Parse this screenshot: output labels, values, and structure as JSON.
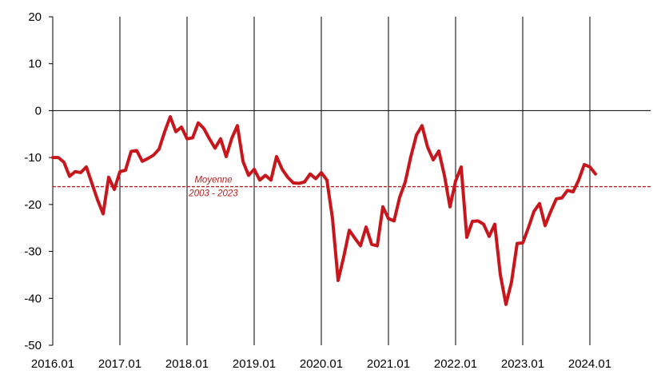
{
  "chart_data": {
    "type": "line",
    "title": "",
    "xlabel": "",
    "ylabel": "",
    "ylim": [
      -50,
      20
    ],
    "yticks": [
      20,
      10,
      0,
      -10,
      -20,
      -30,
      -40,
      -50
    ],
    "xlim": [
      "2016.01",
      "2024.12"
    ],
    "xticks": [
      "2016.01",
      "2017.01",
      "2018.01",
      "2019.01",
      "2020.01",
      "2021.01",
      "2022.01",
      "2023.01",
      "2024.01"
    ],
    "grid": "vertical lines at each year",
    "series_color": "#c8161d",
    "series": [
      {
        "x": [
          "2016.01",
          "2016.02",
          "2016.03",
          "2016.04",
          "2016.05",
          "2016.06",
          "2016.07",
          "2016.08",
          "2016.09",
          "2016.10",
          "2016.11",
          "2016.12",
          "2017.01",
          "2017.02",
          "2017.03",
          "2017.04",
          "2017.05",
          "2017.06",
          "2017.07",
          "2017.08",
          "2017.09",
          "2017.10",
          "2017.11",
          "2017.12",
          "2018.01",
          "2018.02",
          "2018.03",
          "2018.04",
          "2018.05",
          "2018.06",
          "2018.07",
          "2018.08",
          "2018.09",
          "2018.10",
          "2018.11",
          "2018.12",
          "2019.01",
          "2019.02",
          "2019.03",
          "2019.04",
          "2019.05",
          "2019.06",
          "2019.07",
          "2019.08",
          "2019.09",
          "2019.10",
          "2019.11",
          "2019.12",
          "2020.01",
          "2020.02",
          "2020.03",
          "2020.04",
          "2020.05",
          "2020.06",
          "2020.07",
          "2020.08",
          "2020.09",
          "2020.10",
          "2020.11",
          "2020.12",
          "2021.01",
          "2021.02",
          "2021.03",
          "2021.04",
          "2021.05",
          "2021.06",
          "2021.07",
          "2021.08",
          "2021.09",
          "2021.10",
          "2021.11",
          "2021.12",
          "2022.01",
          "2022.02",
          "2022.03",
          "2022.04",
          "2022.05",
          "2022.06",
          "2022.07",
          "2022.08",
          "2022.09",
          "2022.10",
          "2022.11",
          "2022.12",
          "2023.01",
          "2023.02",
          "2023.03",
          "2023.04",
          "2023.05",
          "2023.06",
          "2023.07",
          "2023.08",
          "2023.09",
          "2023.10",
          "2023.11",
          "2023.12",
          "2024.01",
          "2024.02"
        ],
        "values": [
          -10,
          -10,
          -11,
          -14,
          -13,
          -13.2,
          -12,
          -15.5,
          -19,
          -22,
          -14.2,
          -16.8,
          -13,
          -12.7,
          -8.7,
          -8.5,
          -10.8,
          -10.2,
          -9.5,
          -8.2,
          -4.5,
          -1.3,
          -4.5,
          -3.5,
          -6,
          -5.8,
          -2.6,
          -3.8,
          -6,
          -8,
          -6,
          -9.8,
          -5.9,
          -3.2,
          -10.8,
          -13.8,
          -12.5,
          -14.8,
          -13.8,
          -14.8,
          -9.8,
          -12.5,
          -14.2,
          -15.4,
          -15.5,
          -15.2,
          -13.5,
          -14.5,
          -13.2,
          -14.8,
          -23,
          -36.2,
          -31.2,
          -25.5,
          -27.2,
          -28.8,
          -24.8,
          -28.5,
          -28.8,
          -20.5,
          -23,
          -23.5,
          -18.5,
          -15.2,
          -9.8,
          -5.2,
          -3.2,
          -7.8,
          -10.5,
          -8.6,
          -13.8,
          -20.5,
          -15,
          -12,
          -27,
          -23.6,
          -23.5,
          -24.2,
          -26.8,
          -24.2,
          -35,
          -41.3,
          -36.5,
          -28.3,
          -28.2,
          -25,
          -21.5,
          -19.8,
          -24.5,
          -21.5,
          -18.8,
          -18.6,
          -17,
          -17.3,
          -14.8,
          -11.5,
          -12,
          -13.5
        ]
      }
    ],
    "reference_line": {
      "value": -16.2,
      "label_line1": "Moyenne",
      "label_line2": "2003 - 2023",
      "color": "#b22222"
    }
  }
}
